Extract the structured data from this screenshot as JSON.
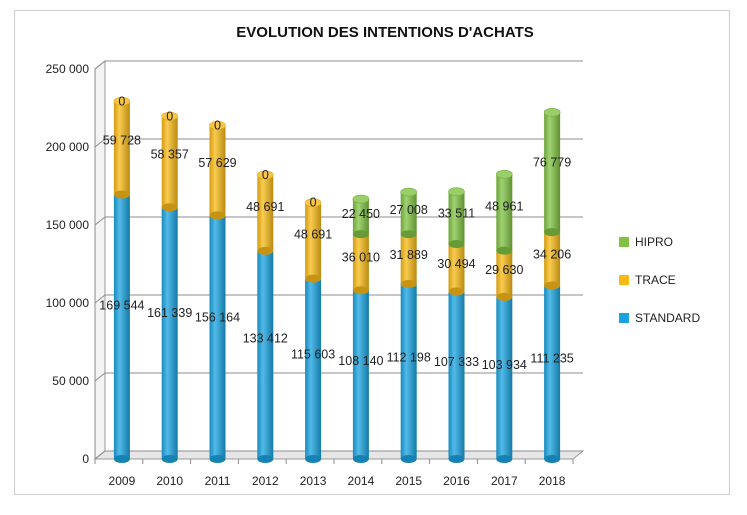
{
  "chart_data": {
    "type": "bar",
    "stacked": true,
    "title": "EVOLUTION DES INTENTIONS D'ACHATS",
    "xlabel": "",
    "ylabel": "",
    "categories": [
      "2009",
      "2010",
      "2011",
      "2012",
      "2013",
      "2014",
      "2015",
      "2016",
      "2017",
      "2018"
    ],
    "ylim": [
      0,
      250000
    ],
    "yticks": [
      0,
      50000,
      100000,
      150000,
      200000,
      250000
    ],
    "ytick_labels": [
      "0",
      "50 000",
      "100 000",
      "150 000",
      "200 000",
      "250 000"
    ],
    "grid": true,
    "legend_position": "right",
    "series": [
      {
        "name": "STANDARD",
        "color": "#1aa3e0",
        "values": [
          169544,
          161339,
          156164,
          133412,
          115603,
          108140,
          112198,
          107333,
          103934,
          111235
        ],
        "labels": [
          "169 544",
          "161 339",
          "156 164",
          "133 412",
          "115 603",
          "108 140",
          "112 198",
          "107 333",
          "103 934",
          "111 235"
        ]
      },
      {
        "name": "TRACE",
        "color": "#f7b916",
        "values": [
          59728,
          58357,
          57629,
          48691,
          48691,
          36010,
          31889,
          30494,
          29630,
          34206
        ],
        "labels": [
          "59 728",
          "58 357",
          "57 629",
          "48 691",
          "48 691",
          "36 010",
          "31 889",
          "30 494",
          "29 630",
          "34 206"
        ]
      },
      {
        "name": "HIPRO",
        "color": "#80c243",
        "values": [
          0,
          0,
          0,
          0,
          0,
          22450,
          27008,
          33511,
          48961,
          76779
        ],
        "labels": [
          "0",
          "0",
          "0",
          "0",
          "0",
          "22 450",
          "27 008",
          "33 511",
          "48 961",
          "76 779"
        ]
      }
    ]
  }
}
